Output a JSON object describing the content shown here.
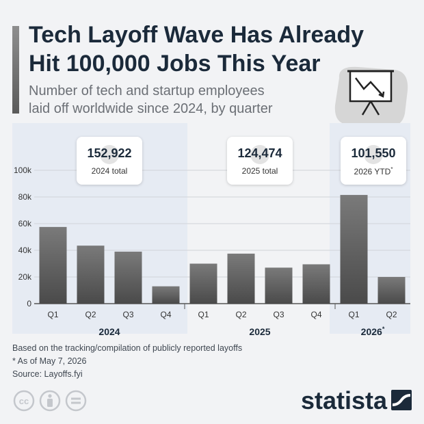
{
  "header": {
    "title_line1": "Tech Layoff Wave Has Already",
    "title_line2": "Hit 100,000 Jobs This Year",
    "subtitle_line1": "Number of tech and startup employees",
    "subtitle_line2": "laid off worldwide since 2024, by quarter"
  },
  "callouts": [
    {
      "value": "152,922",
      "label": "2024 total"
    },
    {
      "value": "124,474",
      "label": "2025 total"
    },
    {
      "value": "101,550",
      "label": "2026 YTD",
      "marker": "*"
    }
  ],
  "chart_data": {
    "type": "bar",
    "title": "Tech Layoff Wave Has Already Hit 100,000 Jobs This Year",
    "subtitle": "Number of tech and startup employees laid off worldwide since 2024, by quarter",
    "categories": [
      "Q1",
      "Q2",
      "Q3",
      "Q4",
      "Q1",
      "Q2",
      "Q3",
      "Q4",
      "Q1",
      "Q2"
    ],
    "years": [
      {
        "label": "2024",
        "count": 4,
        "highlighted": true
      },
      {
        "label": "2025",
        "count": 4,
        "highlighted": false
      },
      {
        "label": "2026",
        "marker": "*",
        "count": 2,
        "highlighted": true
      }
    ],
    "values": [
      57500,
      43500,
      39000,
      13000,
      30000,
      37500,
      27000,
      29500,
      81500,
      20000
    ],
    "yticks": [
      0,
      20000,
      40000,
      60000,
      80000,
      100000
    ],
    "ytick_labels": [
      "0",
      "20k",
      "40k",
      "60k",
      "80k",
      "100k"
    ],
    "ylim": [
      0,
      120000
    ],
    "grid": true,
    "xlabel": "",
    "ylabel": ""
  },
  "notes": {
    "line1": "Based on the tracking/compilation of publicly reported layoffs",
    "line2": "* As of May 7, 2026",
    "line3": "Source: Layoffs.fyi"
  },
  "brand": {
    "name": "statista"
  },
  "colors": {
    "bar_top": "#7a7a7a",
    "bar_bottom": "#4a4a4a",
    "highlight_band": "#e6ebf3",
    "title": "#1b2a3a",
    "brand": "#1b2a3a"
  },
  "icons": [
    "presentation-chart-icon",
    "cc-icon",
    "attribution-icon",
    "no-derivatives-icon",
    "statista-logo-icon"
  ]
}
